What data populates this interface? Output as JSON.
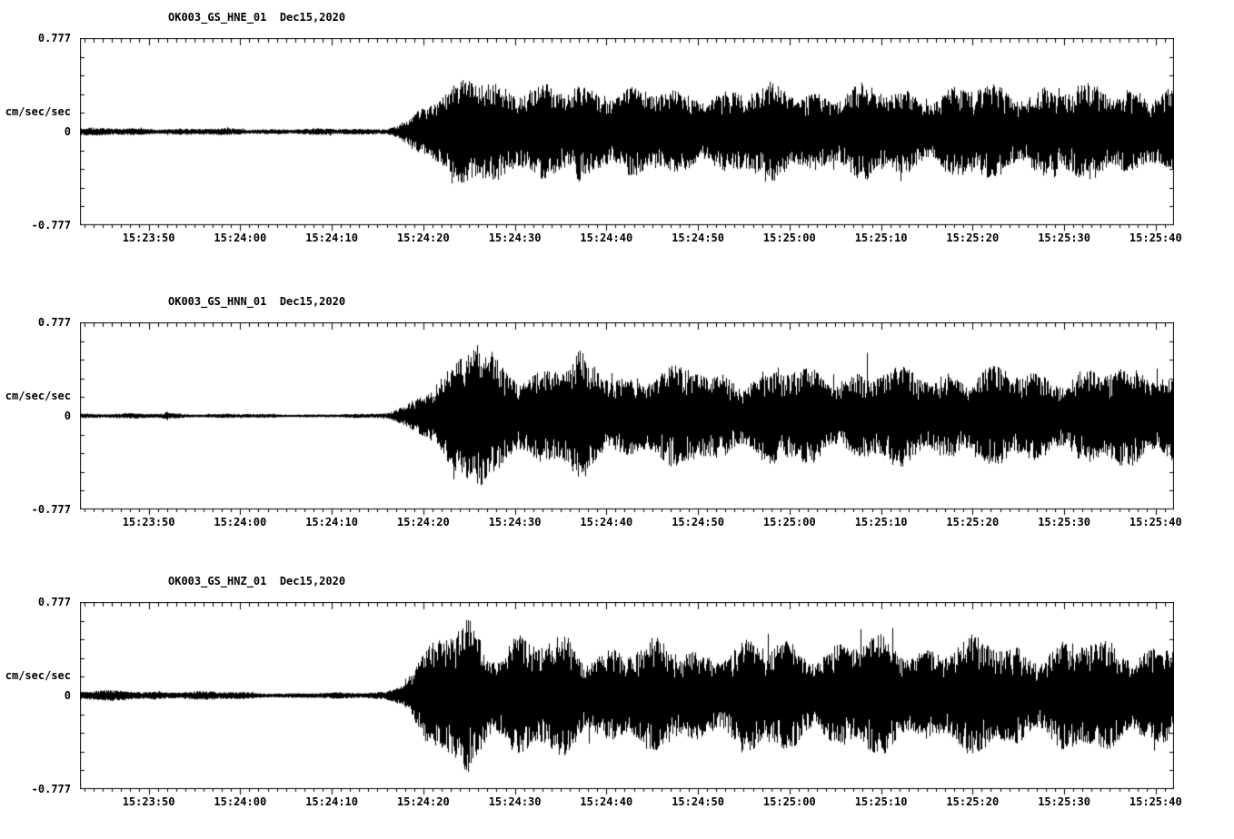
{
  "page": {
    "background": "#ffffff",
    "trace_color": "#000000"
  },
  "chart_data": [
    {
      "type": "line",
      "subtype": "seismic-waveform",
      "title": "OK003_GS_HNE_01  Dec15,2020",
      "station_channel": "OK003_GS_HNE_01",
      "date_label": "Dec15,2020",
      "ylabel": "cm/sec/sec",
      "ylim": [
        -0.777,
        0.777
      ],
      "ytick_labels": [
        "0.777",
        "0",
        "-0.777"
      ],
      "xlim_sec": [
        -7.5,
        112
      ],
      "x_tick_times": [
        0,
        10,
        20,
        30,
        40,
        50,
        60,
        70,
        80,
        90,
        100,
        110
      ],
      "x_tick_labels": [
        "15:23:50",
        "15:24:00",
        "15:24:10",
        "15:24:20",
        "15:24:30",
        "15:24:40",
        "15:24:50",
        "15:25:00",
        "15:25:10",
        "15:25:20",
        "15:25:30",
        "15:25:40"
      ],
      "minor_tick_step_sec": 1,
      "envelope": {
        "t": [
          -7.5,
          0,
          5,
          10,
          15,
          20,
          24,
          26,
          27,
          28,
          29,
          30,
          31,
          32,
          33,
          34,
          35,
          36,
          37,
          38,
          39,
          40,
          42,
          44,
          46,
          47,
          48,
          50,
          52,
          54,
          56,
          58,
          60,
          63,
          66,
          70,
          74,
          78,
          82,
          86,
          90,
          94,
          98,
          102,
          106,
          110,
          112
        ],
        "amp": [
          0.032,
          0.03,
          0.028,
          0.027,
          0.026,
          0.026,
          0.027,
          0.035,
          0.06,
          0.1,
          0.16,
          0.22,
          0.26,
          0.3,
          0.34,
          0.45,
          0.6,
          0.63,
          0.55,
          0.48,
          0.42,
          0.4,
          0.38,
          0.36,
          0.42,
          0.52,
          0.4,
          0.42,
          0.38,
          0.34,
          0.37,
          0.35,
          0.4,
          0.36,
          0.38,
          0.42,
          0.36,
          0.38,
          0.4,
          0.36,
          0.4,
          0.38,
          0.42,
          0.38,
          0.4,
          0.42,
          0.4
        ]
      }
    },
    {
      "type": "line",
      "subtype": "seismic-waveform",
      "title": "OK003_GS_HNN_01  Dec15,2020",
      "station_channel": "OK003_GS_HNN_01",
      "date_label": "Dec15,2020",
      "ylabel": "cm/sec/sec",
      "ylim": [
        -0.777,
        0.777
      ],
      "ytick_labels": [
        "0.777",
        "0",
        "-0.777"
      ],
      "xlim_sec": [
        -7.5,
        112
      ],
      "x_tick_times": [
        0,
        10,
        20,
        30,
        40,
        50,
        60,
        70,
        80,
        90,
        100,
        110
      ],
      "x_tick_labels": [
        "15:23:50",
        "15:24:00",
        "15:24:10",
        "15:24:20",
        "15:24:30",
        "15:24:40",
        "15:24:50",
        "15:25:00",
        "15:25:10",
        "15:25:20",
        "15:25:30",
        "15:25:40"
      ],
      "minor_tick_step_sec": 1,
      "envelope": {
        "t": [
          -7.5,
          0,
          1.5,
          2,
          2.5,
          4,
          8,
          12,
          16,
          20,
          24,
          26,
          27,
          28,
          29,
          30,
          31,
          32,
          33,
          34,
          35,
          36,
          37,
          38,
          39,
          40,
          41,
          42,
          44,
          46,
          47,
          48,
          50,
          52,
          54,
          56,
          58,
          60,
          62,
          65,
          68,
          71,
          74,
          77,
          80,
          84,
          88,
          92,
          96,
          100,
          104,
          108,
          112
        ],
        "amp": [
          0.022,
          0.02,
          0.022,
          0.048,
          0.026,
          0.02,
          0.018,
          0.017,
          0.016,
          0.015,
          0.017,
          0.03,
          0.06,
          0.1,
          0.18,
          0.26,
          0.3,
          0.34,
          0.38,
          0.5,
          0.62,
          0.7,
          0.6,
          0.52,
          0.48,
          0.5,
          0.44,
          0.4,
          0.42,
          0.46,
          0.52,
          0.46,
          0.44,
          0.4,
          0.38,
          0.42,
          0.38,
          0.44,
          0.4,
          0.38,
          0.4,
          0.42,
          0.38,
          0.4,
          0.42,
          0.38,
          0.42,
          0.4,
          0.38,
          0.42,
          0.4,
          0.42,
          0.44
        ]
      }
    },
    {
      "type": "line",
      "subtype": "seismic-waveform",
      "title": "OK003_GS_HNZ_01  Dec15,2020",
      "station_channel": "OK003_GS_HNZ_01",
      "date_label": "Dec15,2020",
      "ylabel": "cm/sec/sec",
      "ylim": [
        -0.777,
        0.777
      ],
      "ytick_labels": [
        "0.777",
        "0",
        "-0.777"
      ],
      "xlim_sec": [
        -7.5,
        112
      ],
      "x_tick_times": [
        0,
        10,
        20,
        30,
        40,
        50,
        60,
        70,
        80,
        90,
        100,
        110
      ],
      "x_tick_labels": [
        "15:23:50",
        "15:24:00",
        "15:24:10",
        "15:24:20",
        "15:24:30",
        "15:24:40",
        "15:24:50",
        "15:25:00",
        "15:25:10",
        "15:25:20",
        "15:25:30",
        "15:25:40"
      ],
      "minor_tick_step_sec": 1,
      "envelope": {
        "t": [
          -7.5,
          0,
          4,
          8,
          12,
          16,
          20,
          24,
          26,
          27,
          28,
          29,
          30,
          31,
          32,
          33,
          34,
          35,
          36,
          37,
          38,
          40,
          42,
          44,
          46,
          48,
          50,
          52,
          55,
          58,
          61,
          64,
          67,
          70,
          73,
          76,
          80,
          84,
          88,
          92,
          96,
          100,
          104,
          108,
          112
        ],
        "amp": [
          0.042,
          0.04,
          0.038,
          0.034,
          0.028,
          0.022,
          0.024,
          0.03,
          0.042,
          0.08,
          0.14,
          0.24,
          0.34,
          0.42,
          0.5,
          0.6,
          0.68,
          0.72,
          0.6,
          0.52,
          0.5,
          0.52,
          0.46,
          0.48,
          0.5,
          0.44,
          0.46,
          0.42,
          0.44,
          0.46,
          0.42,
          0.44,
          0.46,
          0.48,
          0.44,
          0.46,
          0.48,
          0.44,
          0.46,
          0.48,
          0.44,
          0.46,
          0.48,
          0.46,
          0.48
        ]
      }
    }
  ]
}
